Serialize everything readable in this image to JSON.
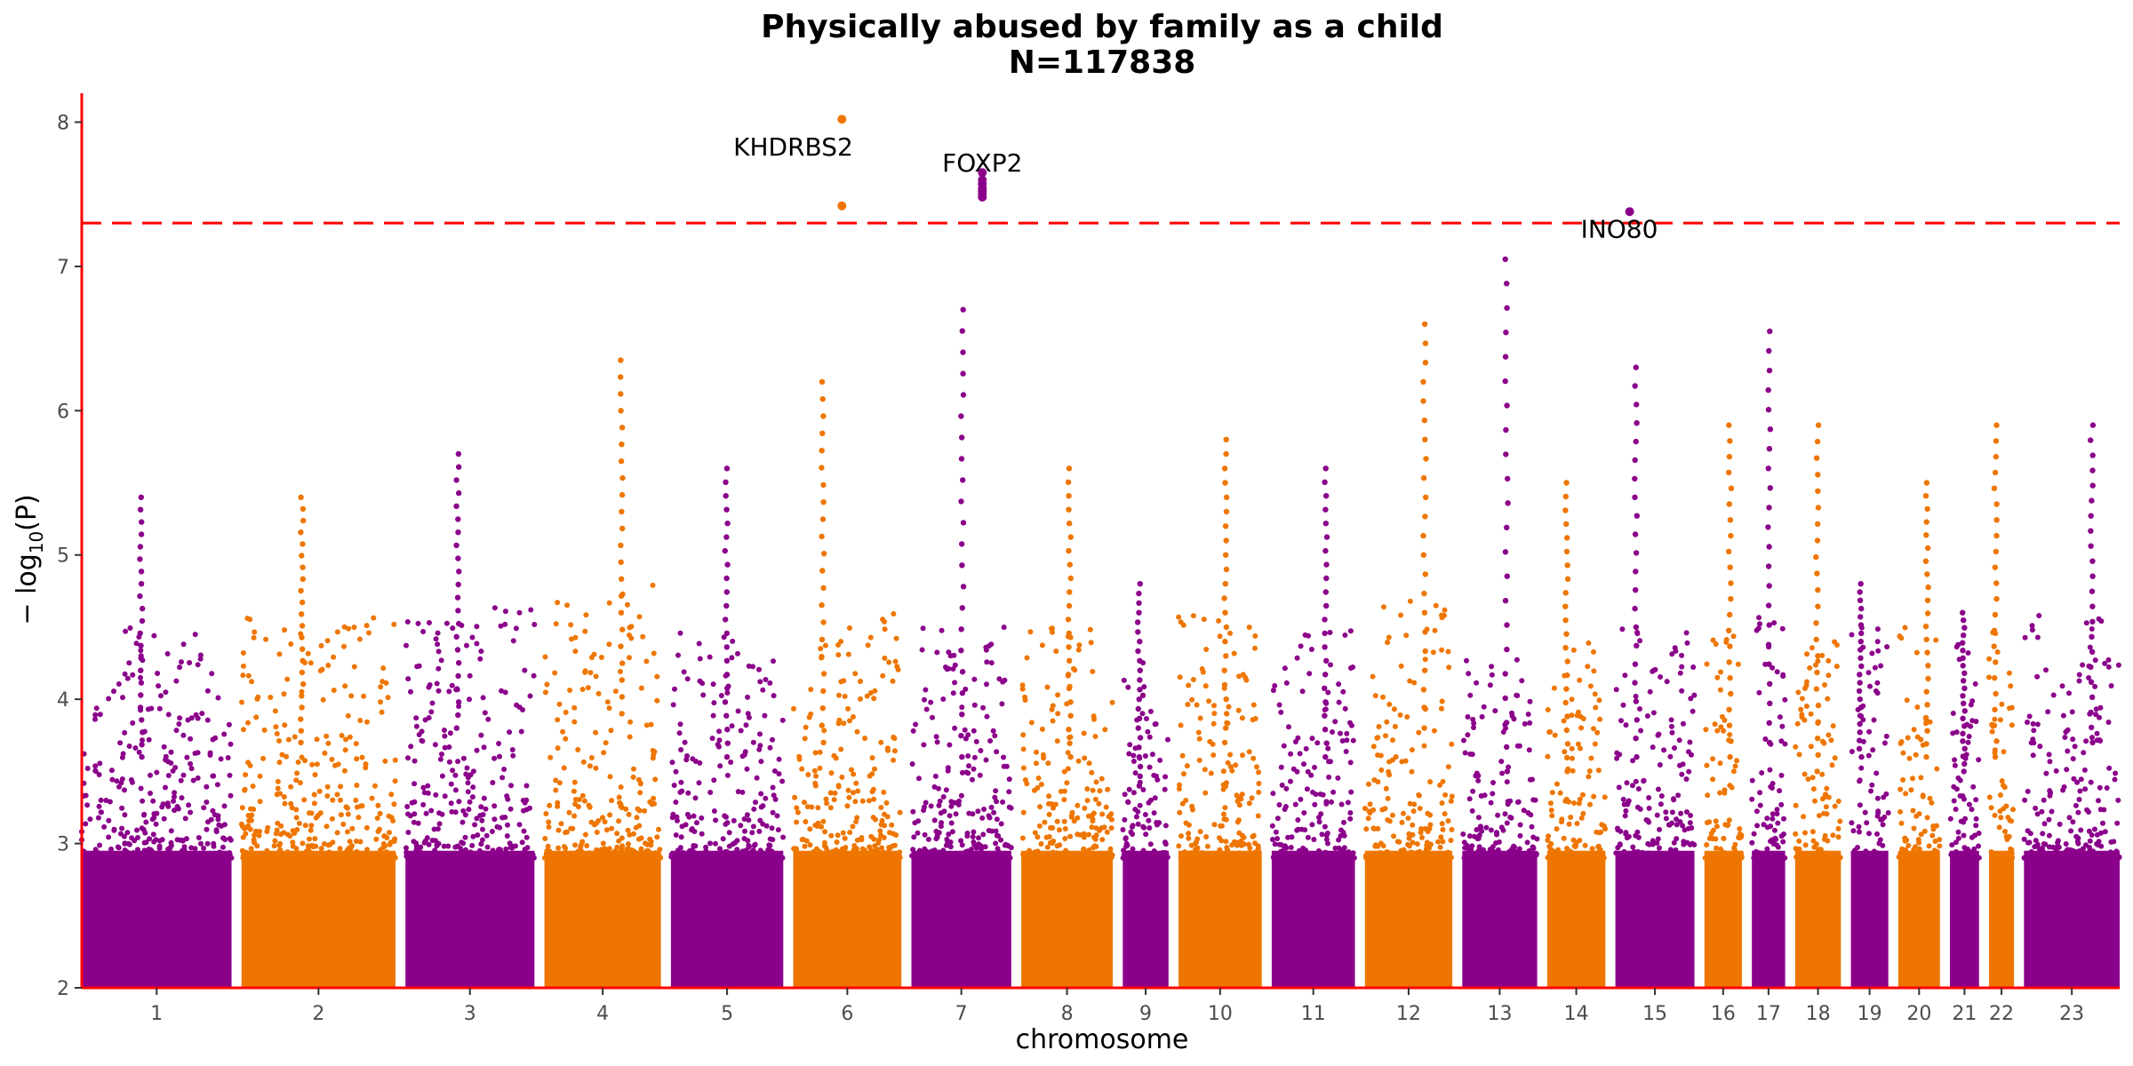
{
  "chart_data": {
    "type": "scatter",
    "title": "Physically abused by family as a child",
    "subtitle": "N=117838",
    "xlabel": "chromosome",
    "ylabel": "− log10(P)",
    "ylim": [
      2,
      8.2
    ],
    "yticks": [
      2,
      3,
      4,
      5,
      6,
      7,
      8
    ],
    "significance_line": 7.3,
    "colors": {
      "odd": "#8b008b",
      "even": "#ee7600",
      "threshold": "#ff0000",
      "axis": "#ff0000"
    },
    "chromosomes": [
      {
        "label": "1",
        "width": 36,
        "peak": 5.4,
        "bg": 3.6
      },
      {
        "label": "2",
        "width": 37,
        "peak": 5.4,
        "bg": 3.7
      },
      {
        "label": "3",
        "width": 31,
        "peak": 5.7,
        "bg": 3.8
      },
      {
        "label": "4",
        "width": 28,
        "peak": 6.35,
        "bg": 3.9
      },
      {
        "label": "5",
        "width": 27,
        "peak": 5.6,
        "bg": 3.6
      },
      {
        "label": "6",
        "width": 26,
        "peak": 6.2,
        "bg": 3.7
      },
      {
        "label": "7",
        "width": 24,
        "peak": 6.7,
        "bg": 3.6
      },
      {
        "label": "8",
        "width": 22,
        "peak": 5.6,
        "bg": 3.6
      },
      {
        "label": "9",
        "width": 11,
        "peak": 4.8,
        "bg": 3.4
      },
      {
        "label": "10",
        "width": 20,
        "peak": 5.8,
        "bg": 3.7
      },
      {
        "label": "11",
        "width": 20,
        "peak": 5.6,
        "bg": 3.6
      },
      {
        "label": "12",
        "width": 21,
        "peak": 6.6,
        "bg": 3.8
      },
      {
        "label": "13",
        "width": 18,
        "peak": 7.05,
        "bg": 3.5
      },
      {
        "label": "14",
        "width": 14,
        "peak": 5.5,
        "bg": 3.5
      },
      {
        "label": "15",
        "width": 19,
        "peak": 6.3,
        "bg": 3.6
      },
      {
        "label": "16",
        "width": 9,
        "peak": 5.9,
        "bg": 3.6
      },
      {
        "label": "17",
        "width": 8,
        "peak": 6.55,
        "bg": 3.7
      },
      {
        "label": "18",
        "width": 11,
        "peak": 5.9,
        "bg": 3.5
      },
      {
        "label": "19",
        "width": 9,
        "peak": 4.8,
        "bg": 3.6
      },
      {
        "label": "20",
        "width": 10,
        "peak": 5.5,
        "bg": 3.6
      },
      {
        "label": "21",
        "width": 7,
        "peak": 4.6,
        "bg": 3.5
      },
      {
        "label": "22",
        "width": 6,
        "peak": 5.9,
        "bg": 3.6
      },
      {
        "label": "23",
        "width": 23,
        "peak": 5.9,
        "bg": 3.7
      }
    ],
    "highlights": [
      {
        "chromosome": "6",
        "pos": 0.45,
        "values": [
          8.02,
          7.42
        ],
        "color": "#ee7600"
      },
      {
        "chromosome": "7",
        "pos": 0.71,
        "values": [
          7.65,
          7.6,
          7.57,
          7.54,
          7.52,
          7.5,
          7.48
        ],
        "color": "#8b008b"
      },
      {
        "chromosome": "15",
        "pos": 0.18,
        "values": [
          7.38
        ],
        "color": "#8b008b"
      }
    ],
    "annotations": [
      {
        "text": "KHDRBS2",
        "chromosome": "6",
        "pos": 0.0,
        "y": 7.83
      },
      {
        "text": "FOXP2",
        "chromosome": "7",
        "pos": 0.71,
        "y": 7.72
      },
      {
        "text": "INO80",
        "chromosome": "15",
        "pos": 0.05,
        "y": 7.26
      }
    ]
  }
}
